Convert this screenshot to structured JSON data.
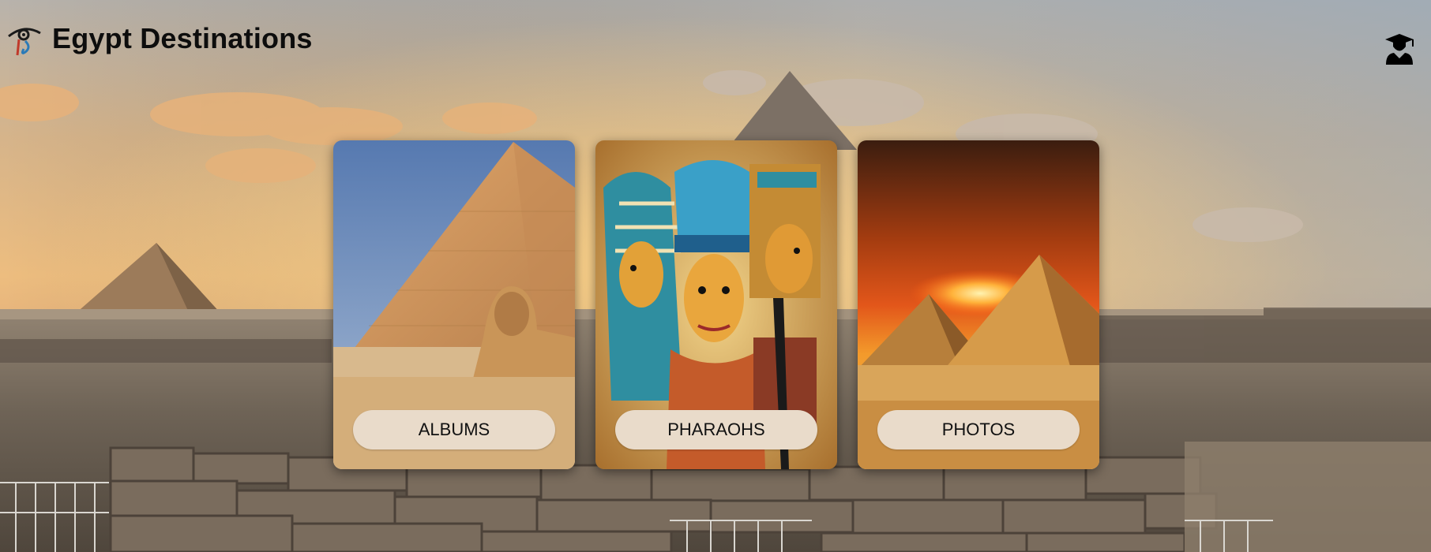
{
  "header": {
    "title": "Egypt Destinations",
    "logo_icon": "eye-of-ra-logo",
    "user_icon": "graduate-user-icon"
  },
  "cards": [
    {
      "id": "albums",
      "label": "ALBUMS",
      "image": "great-pyramid-and-sphinx"
    },
    {
      "id": "pharaohs",
      "label": "PHARAOHS",
      "image": "pharaoh-papyrus-painting"
    },
    {
      "id": "photos",
      "label": "PHOTOS",
      "image": "pyramids-at-sunset"
    }
  ],
  "colors": {
    "button_bg": "#e9dbca",
    "title_text": "#0d0d0d",
    "sky_top": "#c9c2b8",
    "sunset_glow": "#f0b56a"
  }
}
